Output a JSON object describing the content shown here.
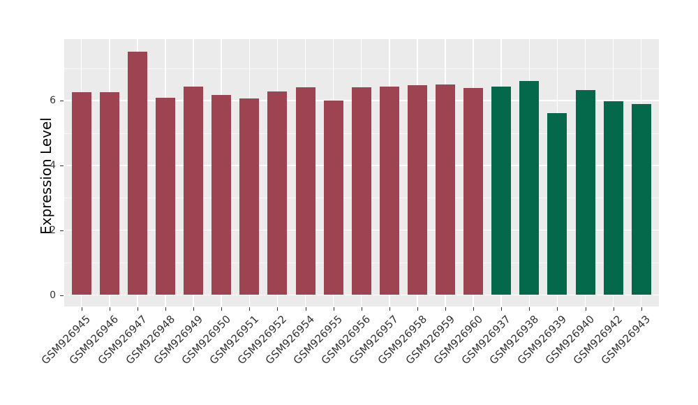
{
  "chart_data": {
    "type": "bar",
    "title": "",
    "xlabel": "",
    "ylabel": "Expression Level",
    "yticks": [
      0,
      2,
      4,
      6
    ],
    "yminor_gridlines": [
      1,
      3,
      5,
      7
    ],
    "ylim": [
      0,
      7.9
    ],
    "grid": true,
    "legend_position": "none",
    "panel_background": "#EBEBEB",
    "grid_color": "#FFFFFF",
    "palette": {
      "maroon": "#9E4351",
      "green": "#04684A"
    },
    "categories": [
      "GSM926945",
      "GSM926946",
      "GSM926947",
      "GSM926948",
      "GSM926949",
      "GSM926950",
      "GSM926951",
      "GSM926952",
      "GSM926954",
      "GSM926955",
      "GSM926956",
      "GSM926957",
      "GSM926958",
      "GSM926959",
      "GSM926960",
      "GSM926937",
      "GSM926938",
      "GSM926939",
      "GSM926940",
      "GSM926942",
      "GSM926943"
    ],
    "values": [
      6.27,
      6.27,
      7.51,
      6.08,
      6.43,
      6.17,
      6.07,
      6.29,
      6.42,
      6.0,
      6.42,
      6.43,
      6.47,
      6.5,
      6.4,
      6.43,
      6.61,
      5.61,
      6.32,
      5.98,
      5.89
    ],
    "bar_colors": [
      "maroon",
      "maroon",
      "maroon",
      "maroon",
      "maroon",
      "maroon",
      "maroon",
      "maroon",
      "maroon",
      "maroon",
      "maroon",
      "maroon",
      "maroon",
      "maroon",
      "maroon",
      "green",
      "green",
      "green",
      "green",
      "green",
      "green"
    ]
  }
}
